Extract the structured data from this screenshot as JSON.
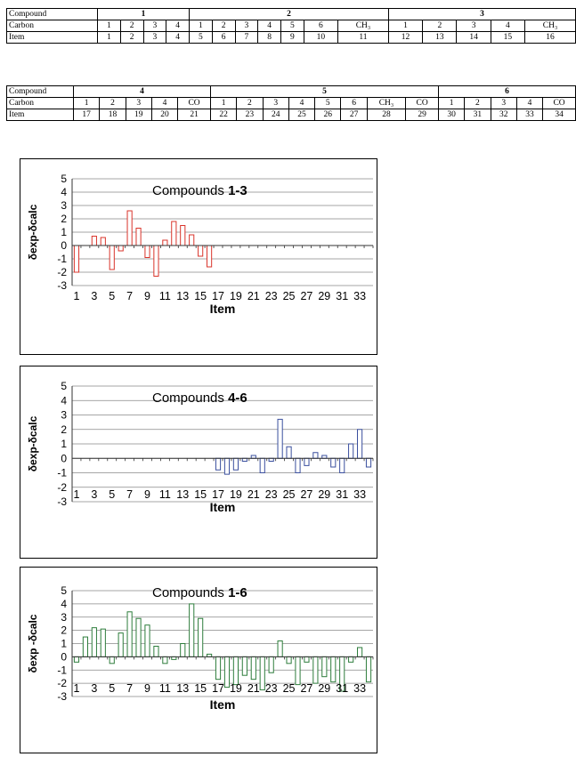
{
  "tables": [
    {
      "rows": [
        {
          "label": "Compound",
          "groups": [
            {
              "name": "1",
              "span": 4
            },
            {
              "name": "2",
              "span": 7
            },
            {
              "name": "3",
              "span": 5
            }
          ]
        },
        {
          "label": "Carbon",
          "cells": [
            "1",
            "2",
            "3",
            "4",
            "1",
            "2",
            "3",
            "4",
            "5",
            "6",
            "CH₃",
            "1",
            "2",
            "3",
            "4",
            "CH₃"
          ]
        },
        {
          "label": "Item",
          "cells": [
            "1",
            "2",
            "3",
            "4",
            "5",
            "6",
            "7",
            "8",
            "9",
            "10",
            "11",
            "12",
            "13",
            "14",
            "15",
            "16"
          ]
        }
      ]
    },
    {
      "rows": [
        {
          "label": "Compound",
          "groups": [
            {
              "name": "4",
              "span": 5
            },
            {
              "name": "5",
              "span": 8
            },
            {
              "name": "6",
              "span": 5
            }
          ]
        },
        {
          "label": "Carbon",
          "cells": [
            "1",
            "2",
            "3",
            "4",
            "CO",
            "1",
            "2",
            "3",
            "4",
            "5",
            "6",
            "CH₃",
            "CO",
            "1",
            "2",
            "3",
            "4",
            "CO"
          ]
        },
        {
          "label": "Item",
          "cells": [
            "17",
            "18",
            "19",
            "20",
            "21",
            "22",
            "23",
            "24",
            "25",
            "26",
            "27",
            "28",
            "29",
            "30",
            "31",
            "32",
            "33",
            "34"
          ]
        }
      ]
    }
  ],
  "chart_data": [
    {
      "type": "bar",
      "title": "Compounds ",
      "title_bold": "1-3",
      "xlabel": "Item",
      "ylabel": "δexp-δcalc",
      "ylim": [
        -3,
        5
      ],
      "yticks": [
        "5",
        "4",
        "3",
        "2",
        "1",
        "0",
        "-1",
        "-2",
        "-3"
      ],
      "xtick_labels": [
        "1",
        "3",
        "5",
        "7",
        "9",
        "11",
        "13",
        "15",
        "17",
        "19",
        "21",
        "23",
        "25",
        "27",
        "29",
        "31",
        "33"
      ],
      "color": "#d9342b",
      "categories": [
        "1",
        "2",
        "3",
        "4",
        "5",
        "6",
        "7",
        "8",
        "9",
        "10",
        "11",
        "12",
        "13",
        "14",
        "15",
        "16",
        "17",
        "18",
        "19",
        "20",
        "21",
        "22",
        "23",
        "24",
        "25",
        "26",
        "27",
        "28",
        "29",
        "30",
        "31",
        "32",
        "33",
        "34"
      ],
      "values": [
        -2.0,
        0.0,
        0.7,
        0.6,
        -1.8,
        -0.4,
        2.6,
        1.3,
        -0.9,
        -2.3,
        0.4,
        1.8,
        1.5,
        0.8,
        -0.8,
        -1.6,
        0,
        0,
        0,
        0,
        0,
        0,
        0,
        0,
        0,
        0,
        0,
        0,
        0,
        0,
        0,
        0,
        0,
        0
      ]
    },
    {
      "type": "bar",
      "title": "Compounds ",
      "title_bold": "4-6",
      "xlabel": "Item",
      "ylabel": "δexp-δcalc",
      "ylim": [
        -3,
        5
      ],
      "yticks": [
        "5",
        "4",
        "3",
        "2",
        "1",
        "0",
        "-1",
        "-2",
        "-3"
      ],
      "xtick_labels": [
        "1",
        "3",
        "5",
        "7",
        "9",
        "11",
        "13",
        "15",
        "17",
        "19",
        "21",
        "23",
        "25",
        "27",
        "29",
        "31",
        "33"
      ],
      "color": "#3a4f9e",
      "categories": [
        "1",
        "2",
        "3",
        "4",
        "5",
        "6",
        "7",
        "8",
        "9",
        "10",
        "11",
        "12",
        "13",
        "14",
        "15",
        "16",
        "17",
        "18",
        "19",
        "20",
        "21",
        "22",
        "23",
        "24",
        "25",
        "26",
        "27",
        "28",
        "29",
        "30",
        "31",
        "32",
        "33",
        "34"
      ],
      "values": [
        0,
        0,
        0,
        0,
        0,
        0,
        0,
        0,
        0,
        0,
        0,
        0,
        0,
        0,
        0,
        0,
        -0.8,
        -1.1,
        -0.8,
        -0.2,
        0.2,
        -1.0,
        -0.2,
        2.7,
        0.8,
        -1.0,
        -0.5,
        0.4,
        0.2,
        -0.6,
        -1.0,
        1.0,
        2.0,
        -0.6
      ]
    },
    {
      "type": "bar",
      "title": "Compounds ",
      "title_bold": "1-6",
      "xlabel": "Item",
      "ylabel": "δexp -δcalc",
      "ylim": [
        -3,
        5
      ],
      "yticks": [
        "5",
        "4",
        "3",
        "2",
        "1",
        "0",
        "-1",
        "-2",
        "-3"
      ],
      "xtick_labels": [
        "1",
        "3",
        "5",
        "7",
        "9",
        "11",
        "13",
        "15",
        "17",
        "19",
        "21",
        "23",
        "25",
        "27",
        "29",
        "31",
        "33"
      ],
      "color": "#2e7d3c",
      "categories": [
        "1",
        "2",
        "3",
        "4",
        "5",
        "6",
        "7",
        "8",
        "9",
        "10",
        "11",
        "12",
        "13",
        "14",
        "15",
        "16",
        "17",
        "18",
        "19",
        "20",
        "21",
        "22",
        "23",
        "24",
        "25",
        "26",
        "27",
        "28",
        "29",
        "30",
        "31",
        "32",
        "33",
        "34"
      ],
      "values": [
        -0.4,
        1.5,
        2.2,
        2.1,
        -0.5,
        1.8,
        3.4,
        2.9,
        2.4,
        0.8,
        -0.5,
        -0.2,
        1.0,
        4.0,
        2.9,
        0.2,
        -1.7,
        -2.3,
        -2.1,
        -1.4,
        -1.7,
        -2.5,
        -1.2,
        1.2,
        -0.5,
        -2.1,
        -0.4,
        -2.0,
        -1.5,
        -1.9,
        -2.6,
        -0.4,
        0.7,
        -1.9
      ]
    }
  ]
}
